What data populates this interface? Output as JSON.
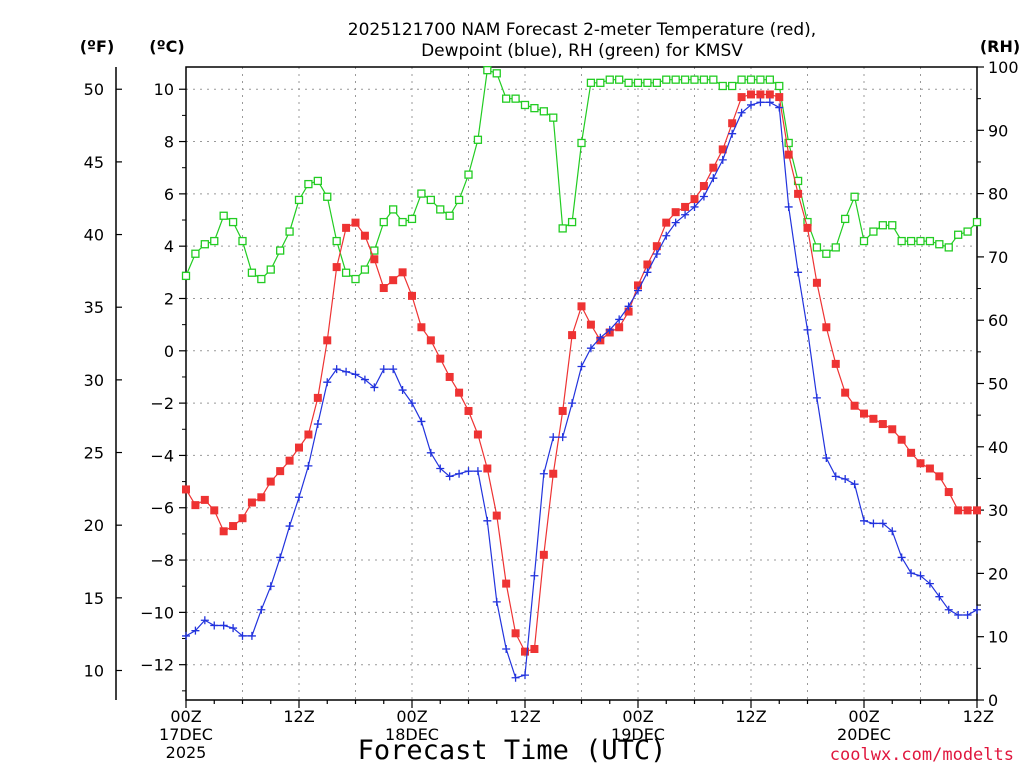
{
  "chart_data": {
    "type": "line",
    "title_line1": "2025121700 NAM Forecast 2-meter Temperature (red),",
    "title_line2": "Dewpoint (blue), RH (green) for KMSV",
    "xlabel": "Forecast Time (UTC)",
    "credit": "coolwx.com/modelts",
    "units": {
      "fahrenheit": "(ºF)",
      "celsius": "(ºC)",
      "rh": "(RH)"
    },
    "x_range_hours": [
      0,
      84
    ],
    "x_ticks": [
      {
        "hour": 0,
        "lines": [
          "00Z",
          "17DEC",
          "2025"
        ]
      },
      {
        "hour": 12,
        "lines": [
          "12Z"
        ]
      },
      {
        "hour": 24,
        "lines": [
          "00Z",
          "18DEC"
        ]
      },
      {
        "hour": 36,
        "lines": [
          "12Z"
        ]
      },
      {
        "hour": 48,
        "lines": [
          "00Z",
          "19DEC"
        ]
      },
      {
        "hour": 60,
        "lines": [
          "12Z"
        ]
      },
      {
        "hour": 72,
        "lines": [
          "00Z",
          "20DEC"
        ]
      },
      {
        "hour": 84,
        "lines": [
          "12Z"
        ]
      }
    ],
    "celsius_axis": {
      "range": [
        -13.35,
        10.85
      ],
      "ticks": [
        -12,
        -10,
        -8,
        -6,
        -4,
        -2,
        0,
        2,
        4,
        6,
        8,
        10
      ]
    },
    "fahrenheit_axis": {
      "ticks": [
        10,
        15,
        20,
        25,
        30,
        35,
        40,
        45,
        50
      ]
    },
    "rh_axis": {
      "range": [
        0,
        100
      ],
      "ticks": [
        0,
        10,
        20,
        30,
        40,
        50,
        60,
        70,
        80,
        90,
        100
      ]
    },
    "grid": true,
    "series": [
      {
        "key": "temperature",
        "color": "#ee3333",
        "marker": "filled-square",
        "axis": "celsius",
        "x": [
          0,
          1,
          2,
          3,
          4,
          5,
          6,
          7,
          8,
          9,
          10,
          11,
          12,
          13,
          14,
          15,
          16,
          17,
          18,
          19,
          20,
          21,
          22,
          23,
          24,
          25,
          26,
          27,
          28,
          29,
          30,
          31,
          32,
          33,
          34,
          35,
          36,
          37,
          38,
          39,
          40,
          41,
          42,
          43,
          44,
          45,
          46,
          47,
          48,
          49,
          50,
          51,
          52,
          53,
          54,
          55,
          56,
          57,
          58,
          59,
          60,
          61,
          62,
          63,
          64,
          65,
          66,
          67,
          68,
          69,
          70,
          71,
          72,
          73,
          74,
          75,
          76,
          77,
          78,
          79,
          80,
          81,
          82,
          83,
          84
        ],
        "values": [
          -5.3,
          -5.9,
          -5.7,
          -6.1,
          -6.9,
          -6.7,
          -6.4,
          -5.8,
          -5.6,
          -5.0,
          -4.6,
          -4.2,
          -3.7,
          -3.2,
          -1.8,
          0.4,
          3.2,
          4.7,
          4.9,
          4.4,
          3.5,
          2.4,
          2.7,
          3.0,
          2.1,
          0.9,
          0.4,
          -0.3,
          -1.0,
          -1.6,
          -2.3,
          -3.2,
          -4.5,
          -6.3,
          -8.9,
          -10.8,
          -11.5,
          -11.4,
          -7.8,
          -4.7,
          -2.3,
          0.6,
          1.7,
          1.0,
          0.4,
          0.7,
          0.9,
          1.5,
          2.5,
          3.3,
          4.0,
          4.9,
          5.3,
          5.5,
          5.8,
          6.3,
          7.0,
          7.7,
          8.7,
          9.7,
          9.8,
          9.8,
          9.8,
          9.7,
          7.5,
          6.0,
          4.7,
          2.6,
          0.9,
          -0.5,
          -1.6,
          -2.1,
          -2.4,
          -2.6,
          -2.8,
          -3.0,
          -3.4,
          -3.9,
          -4.3,
          -4.5,
          -4.8,
          -5.4,
          -6.1,
          -6.1,
          -6.1
        ]
      },
      {
        "key": "dewpoint",
        "color": "#2233dd",
        "marker": "plus",
        "axis": "celsius",
        "x": [
          0,
          1,
          2,
          3,
          4,
          5,
          6,
          7,
          8,
          9,
          10,
          11,
          12,
          13,
          14,
          15,
          16,
          17,
          18,
          19,
          20,
          21,
          22,
          23,
          24,
          25,
          26,
          27,
          28,
          29,
          30,
          31,
          32,
          33,
          34,
          35,
          36,
          37,
          38,
          39,
          40,
          41,
          42,
          43,
          44,
          45,
          46,
          47,
          48,
          49,
          50,
          51,
          52,
          53,
          54,
          55,
          56,
          57,
          58,
          59,
          60,
          61,
          62,
          63,
          64,
          65,
          66,
          67,
          68,
          69,
          70,
          71,
          72,
          73,
          74,
          75,
          76,
          77,
          78,
          79,
          80,
          81,
          82,
          83,
          84
        ],
        "values": [
          -10.9,
          -10.7,
          -10.3,
          -10.5,
          -10.5,
          -10.6,
          -10.9,
          -10.9,
          -9.9,
          -9.0,
          -7.9,
          -6.7,
          -5.6,
          -4.4,
          -2.8,
          -1.2,
          -0.7,
          -0.8,
          -0.9,
          -1.1,
          -1.4,
          -0.7,
          -0.7,
          -1.5,
          -2.0,
          -2.7,
          -3.9,
          -4.5,
          -4.8,
          -4.7,
          -4.6,
          -4.6,
          -6.5,
          -9.6,
          -11.4,
          -12.5,
          -12.4,
          -8.6,
          -4.7,
          -3.3,
          -3.3,
          -2.0,
          -0.6,
          0.1,
          0.5,
          0.8,
          1.2,
          1.7,
          2.3,
          3.0,
          3.7,
          4.4,
          4.9,
          5.2,
          5.5,
          5.9,
          6.6,
          7.3,
          8.3,
          9.1,
          9.4,
          9.5,
          9.5,
          9.3,
          5.5,
          3.0,
          0.8,
          -1.8,
          -4.1,
          -4.8,
          -4.9,
          -5.1,
          -6.5,
          -6.6,
          -6.6,
          -6.9,
          -7.9,
          -8.5,
          -8.6,
          -8.9,
          -9.4,
          -9.9,
          -10.1,
          -10.1,
          -9.9
        ]
      },
      {
        "key": "rh",
        "color": "#22cc22",
        "marker": "open-square",
        "axis": "rh",
        "x": [
          0,
          1,
          2,
          3,
          4,
          5,
          6,
          7,
          8,
          9,
          10,
          11,
          12,
          13,
          14,
          15,
          16,
          17,
          18,
          19,
          20,
          21,
          22,
          23,
          24,
          25,
          26,
          27,
          28,
          29,
          30,
          31,
          32,
          33,
          34,
          35,
          36,
          37,
          38,
          39,
          40,
          41,
          42,
          43,
          44,
          45,
          46,
          47,
          48,
          49,
          50,
          51,
          52,
          53,
          54,
          55,
          56,
          57,
          58,
          59,
          60,
          61,
          62,
          63,
          64,
          65,
          66,
          67,
          68,
          69,
          70,
          71,
          72,
          73,
          74,
          75,
          76,
          77,
          78,
          79,
          80,
          81,
          82,
          83,
          84
        ],
        "values": [
          67,
          70.5,
          72,
          72.5,
          76.5,
          75.5,
          72.5,
          67.5,
          66.5,
          68,
          71,
          74,
          79,
          81.5,
          82,
          79.5,
          72.5,
          67.5,
          66.5,
          68,
          71,
          75.5,
          77.5,
          75.5,
          76,
          80,
          79,
          77.5,
          76.5,
          79,
          83,
          88.5,
          99.5,
          99,
          95,
          95,
          94,
          93.5,
          93,
          92,
          74.5,
          75.5,
          88,
          97.5,
          97.5,
          98,
          98,
          97.5,
          97.5,
          97.5,
          97.5,
          98,
          98,
          98,
          98,
          98,
          98,
          97,
          97,
          98,
          98,
          98,
          98,
          97,
          88,
          82,
          75.5,
          71.5,
          70.5,
          71.5,
          76,
          79.5,
          72.5,
          74,
          75,
          75,
          72.5,
          72.5,
          72.5,
          72.5,
          72,
          71.5,
          73.5,
          74,
          75.5
        ]
      }
    ]
  }
}
